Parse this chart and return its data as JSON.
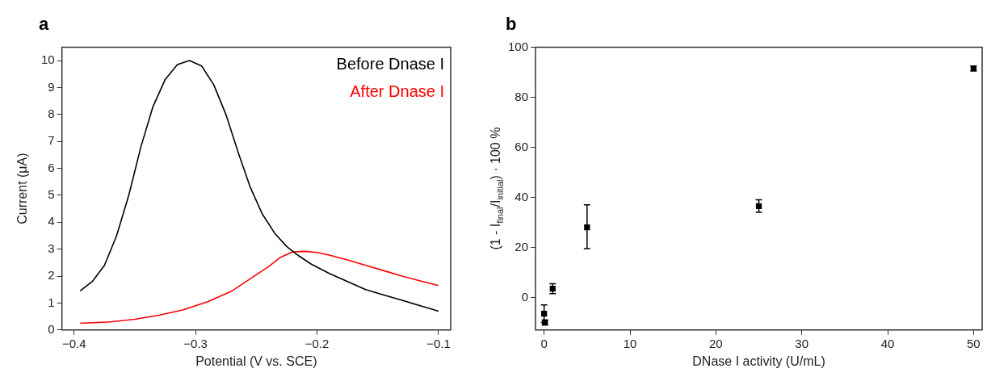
{
  "chart_data": [
    {
      "type": "line",
      "title": "a",
      "xlabel": "Potential (V vs. SCE)",
      "ylabel": "Current (μA)",
      "xlim": [
        -0.41,
        -0.09
      ],
      "xticks": [
        {
          "value": -0.4,
          "label": "−0.4"
        },
        {
          "value": -0.3,
          "label": "−0.3"
        },
        {
          "value": -0.2,
          "label": "−0.2"
        },
        {
          "value": -0.1,
          "label": "−0.1"
        }
      ],
      "ylim": [
        0,
        10.5
      ],
      "yticks": [
        0,
        1,
        2,
        3,
        4,
        5,
        6,
        7,
        8,
        9,
        10
      ],
      "grid": false,
      "legend": "top right",
      "marker": "none",
      "line_style": "solid",
      "series": [
        {
          "name": "Before Dnase I",
          "color": "#000000",
          "x": [
            -0.395,
            -0.385,
            -0.375,
            -0.365,
            -0.355,
            -0.345,
            -0.335,
            -0.325,
            -0.315,
            -0.305,
            -0.295,
            -0.285,
            -0.275,
            -0.265,
            -0.255,
            -0.245,
            -0.235,
            -0.225,
            -0.215,
            -0.205,
            -0.19,
            -0.175,
            -0.16,
            -0.145,
            -0.13,
            -0.115,
            -0.1
          ],
          "values": [
            1.45,
            1.8,
            2.4,
            3.5,
            5.0,
            6.8,
            8.3,
            9.3,
            9.85,
            10.0,
            9.8,
            9.1,
            8.0,
            6.6,
            5.3,
            4.3,
            3.6,
            3.1,
            2.75,
            2.45,
            2.1,
            1.8,
            1.5,
            1.3,
            1.1,
            0.9,
            0.7
          ]
        },
        {
          "name": "After Dnase I",
          "color": "#ff0000",
          "x": [
            -0.395,
            -0.37,
            -0.35,
            -0.33,
            -0.31,
            -0.29,
            -0.27,
            -0.255,
            -0.24,
            -0.23,
            -0.22,
            -0.21,
            -0.2,
            -0.19,
            -0.175,
            -0.16,
            -0.145,
            -0.13,
            -0.115,
            -0.1
          ],
          "values": [
            0.25,
            0.3,
            0.4,
            0.55,
            0.75,
            1.05,
            1.45,
            1.9,
            2.35,
            2.7,
            2.9,
            2.92,
            2.88,
            2.78,
            2.6,
            2.4,
            2.2,
            2.0,
            1.82,
            1.65
          ]
        }
      ]
    },
    {
      "type": "scatter",
      "title": "b",
      "xlabel": "DNase I activity (U/mL)",
      "ylabel": "(1 - I$_{final}$/I$_{initial}$) · 100 %",
      "xlim": [
        -1,
        51
      ],
      "xticks": [
        0,
        10,
        20,
        30,
        40,
        50
      ],
      "ylim": [
        -13,
        100
      ],
      "yticks": [
        0,
        20,
        40,
        60,
        80,
        100
      ],
      "grid": false,
      "marker": "square",
      "series": [
        {
          "color": "#000000",
          "x": [
            0,
            0.1,
            1,
            5,
            25,
            50
          ],
          "values": [
            -6.5,
            -10,
            3.5,
            28,
            36.5,
            91.5
          ],
          "errors": [
            [
              -10,
              -3
            ],
            1,
            2,
            [
              19.5,
              37
            ],
            2.5,
            1
          ]
        }
      ]
    }
  ]
}
